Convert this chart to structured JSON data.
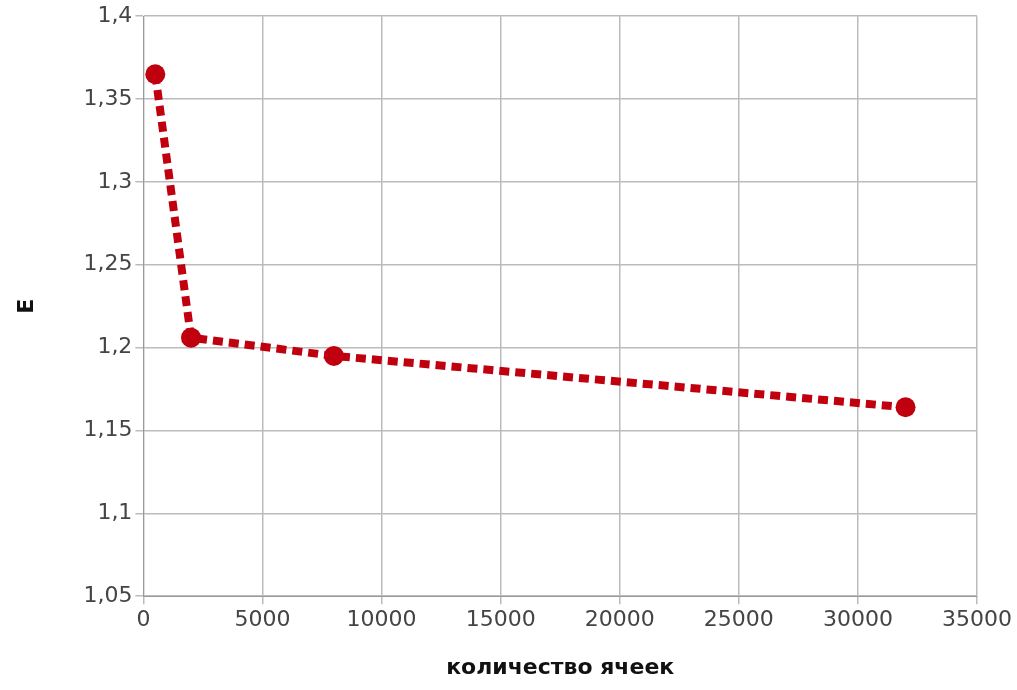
{
  "chart_data": {
    "type": "line",
    "xlabel": "количество ячеек",
    "ylabel": "E",
    "x": [
      500,
      2000,
      8000,
      32000
    ],
    "series": [
      {
        "color": "#c0000f",
        "values": [
          1.365,
          1.206,
          1.195,
          1.164
        ]
      }
    ],
    "xlim": [
      0,
      35000
    ],
    "xticks": [
      0,
      5000,
      10000,
      15000,
      20000,
      25000,
      30000,
      35000
    ],
    "ylim": [
      1.05,
      1.4
    ],
    "yticks": [
      {
        "value": 1.05,
        "label": "1,05"
      },
      {
        "value": 1.1,
        "label": "1,1"
      },
      {
        "value": 1.15,
        "label": "1,15"
      },
      {
        "value": 1.2,
        "label": "1,2"
      },
      {
        "value": 1.25,
        "label": "1,25"
      },
      {
        "value": 1.3,
        "label": "1,3"
      },
      {
        "value": 1.35,
        "label": "1,35"
      },
      {
        "value": 1.4,
        "label": "1,4"
      }
    ],
    "grid": true,
    "legend": false,
    "marker": "circle",
    "line_style": "dashed"
  }
}
